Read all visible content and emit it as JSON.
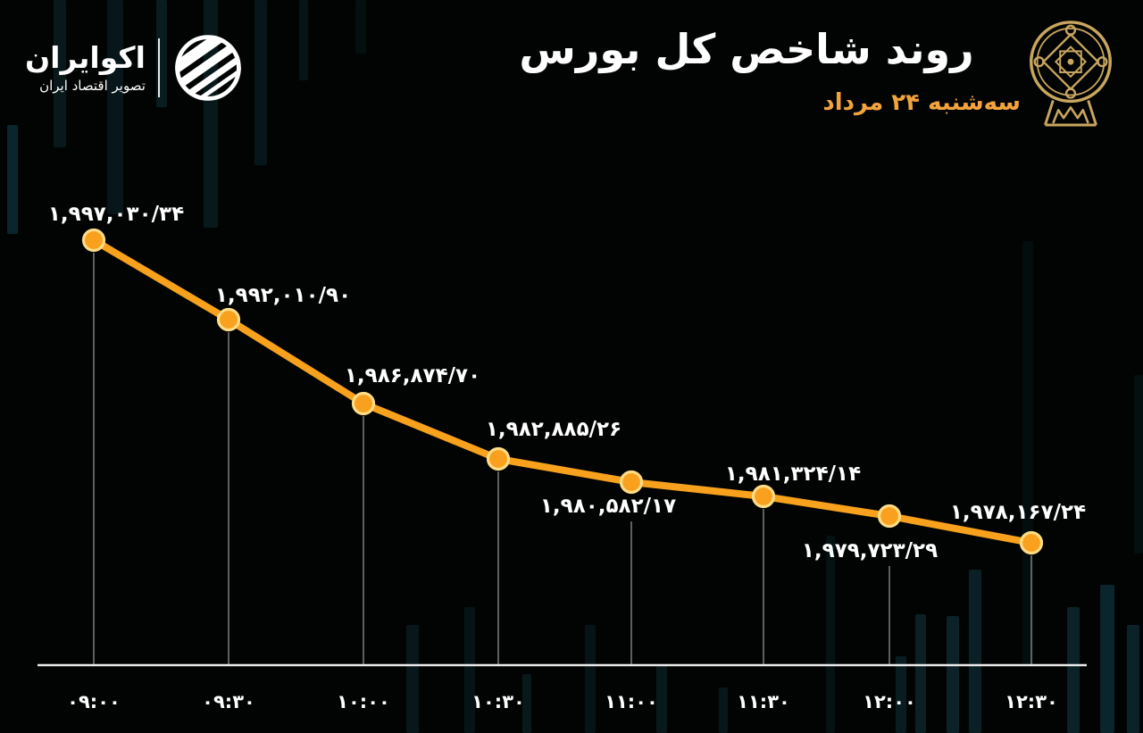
{
  "colors": {
    "background": "#020403",
    "accent_orange": "#F7A11C",
    "dot_fill": "#F9A11E",
    "dot_ring": "#FFDC85",
    "subtitle_orange": "#F2A33B",
    "emblem_gold": "#C9A65F",
    "axis": "#E9E9E9",
    "drop_line": "#BDBDBD",
    "bg_bar": "#13424E",
    "label_white": "#FFFFFF"
  },
  "header": {
    "brand": {
      "name": "اکوایران",
      "tagline": "تصویر اقتصاد ایران",
      "logo_icon": "ecoiran-swoosh-circle"
    },
    "title": "روند شاخص کل بورس",
    "subtitle": "سه‌شنبه ۲۴ مرداد",
    "emblem_icon": "tehran-stock-exchange-emblem"
  },
  "chart_data": {
    "type": "line",
    "title": "روند شاخص کل بورس",
    "x_labels_fa": [
      "۰۹:۰۰",
      "۰۹:۳۰",
      "۱۰:۰۰",
      "۱۰:۳۰",
      "۱۱:۰۰",
      "۱۱:۳۰",
      "۱۲:۰۰",
      "۱۲:۳۰"
    ],
    "x_labels_latin": [
      "09:00",
      "09:30",
      "10:00",
      "10:30",
      "11:00",
      "11:30",
      "12:00",
      "12:30"
    ],
    "values": [
      1997030.34,
      1992010.9,
      1986874.7,
      1982885.26,
      1980582.17,
      1981324.14,
      1979723.29,
      1978167.24
    ],
    "value_labels_fa": [
      "۱,۹۹۷,۰۳۰/۳۴",
      "۱,۹۹۲,۰۱۰/۹۰",
      "۱,۹۸۶,۸۷۴/۷۰",
      "۱,۹۸۲,۸۸۵/۲۶",
      "۱,۹۸۰,۵۸۲/۱۷",
      "۱,۹۸۱,۳۲۴/۱۴",
      "۱,۹۷۹,۷۲۳/۲۹",
      "۱,۹۷۸,۱۶۷/۲۴"
    ],
    "label_side": [
      "above",
      "above",
      "above",
      "above",
      "below",
      "above",
      "below",
      "above"
    ],
    "ylim": [
      1978000,
      1997200
    ],
    "grid": false,
    "legend": false,
    "line_color": "#F7A11C"
  }
}
